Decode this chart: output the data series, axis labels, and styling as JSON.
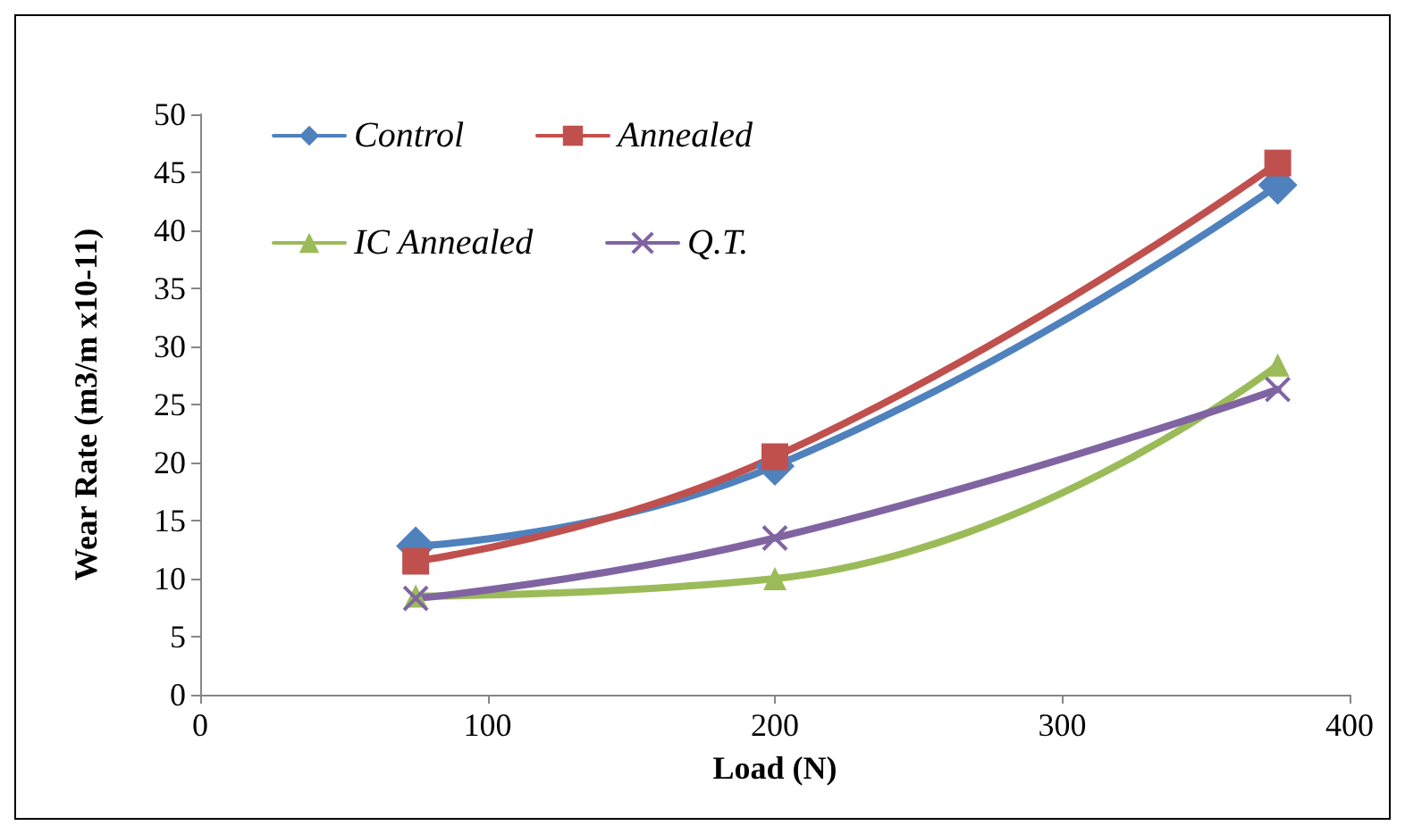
{
  "chart_data": {
    "type": "line",
    "xlabel": "Load (N)",
    "ylabel": "Wear Rate (m3/m x10-11)",
    "x": [
      75,
      200,
      375
    ],
    "series": [
      {
        "name": "Control",
        "color": "#4f81bd",
        "marker": "diamond",
        "values": [
          12.8,
          19.7,
          43.9
        ]
      },
      {
        "name": "Annealed",
        "color": "#c0504d",
        "marker": "square",
        "values": [
          11.5,
          20.5,
          45.8
        ]
      },
      {
        "name": "IC Annealed",
        "color": "#9bbb59",
        "marker": "triangle",
        "values": [
          8.5,
          10,
          28.4
        ]
      },
      {
        "name": "Q.T.",
        "color": "#8064a2",
        "marker": "cross",
        "values": [
          8.3,
          13.5,
          26.3
        ]
      }
    ],
    "xlim": [
      0,
      400
    ],
    "xticks": [
      0,
      100,
      200,
      300,
      400
    ],
    "ylim": [
      0,
      50
    ],
    "yticks": [
      0,
      5,
      10,
      15,
      20,
      25,
      30,
      35,
      40,
      45,
      50
    ],
    "grid": false,
    "legend": "top left",
    "line_style": "solid"
  }
}
